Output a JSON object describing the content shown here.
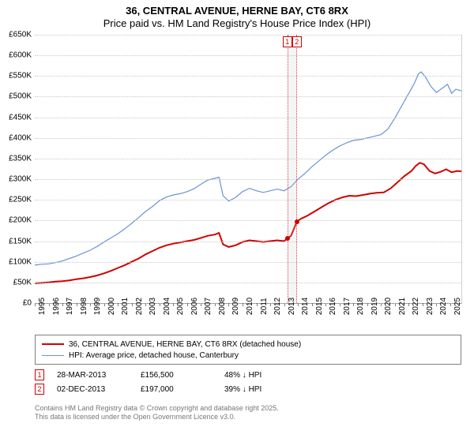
{
  "title": {
    "line1": "36, CENTRAL AVENUE, HERNE BAY, CT6 8RX",
    "line2": "Price paid vs. HM Land Registry's House Price Index (HPI)"
  },
  "chart": {
    "type": "line",
    "background_color": "#ffffff",
    "grid_color": "#c8c8c8",
    "axis_color": "#808080",
    "ylim": [
      0,
      650000
    ],
    "xlim": [
      1995,
      2025.8
    ],
    "yticks": [
      {
        "v": 0,
        "label": "£0"
      },
      {
        "v": 50000,
        "label": "£50K"
      },
      {
        "v": 100000,
        "label": "£100K"
      },
      {
        "v": 150000,
        "label": "£150K"
      },
      {
        "v": 200000,
        "label": "£200K"
      },
      {
        "v": 250000,
        "label": "£250K"
      },
      {
        "v": 300000,
        "label": "£300K"
      },
      {
        "v": 350000,
        "label": "£350K"
      },
      {
        "v": 400000,
        "label": "£400K"
      },
      {
        "v": 450000,
        "label": "£450K"
      },
      {
        "v": 500000,
        "label": "£500K"
      },
      {
        "v": 550000,
        "label": "£550K"
      },
      {
        "v": 600000,
        "label": "£600K"
      },
      {
        "v": 650000,
        "label": "£650K"
      }
    ],
    "xticks": [
      1995,
      1996,
      1997,
      1998,
      1999,
      2000,
      2001,
      2002,
      2003,
      2004,
      2005,
      2006,
      2007,
      2008,
      2009,
      2010,
      2011,
      2012,
      2013,
      2014,
      2015,
      2016,
      2017,
      2018,
      2019,
      2020,
      2021,
      2022,
      2023,
      2024,
      2025
    ],
    "series": [
      {
        "id": "price_paid",
        "label": "36, CENTRAL AVENUE, HERNE BAY, CT6 8RX (detached house)",
        "color": "#d00000",
        "line_width": 2,
        "data": [
          [
            1995,
            48000
          ],
          [
            1995.5,
            49000
          ],
          [
            1996,
            50000
          ],
          [
            1996.5,
            52000
          ],
          [
            1997,
            53000
          ],
          [
            1997.5,
            55000
          ],
          [
            1998,
            58000
          ],
          [
            1998.5,
            60000
          ],
          [
            1999,
            63000
          ],
          [
            1999.5,
            67000
          ],
          [
            2000,
            72000
          ],
          [
            2000.5,
            78000
          ],
          [
            2001,
            85000
          ],
          [
            2001.5,
            92000
          ],
          [
            2002,
            100000
          ],
          [
            2002.5,
            108000
          ],
          [
            2003,
            118000
          ],
          [
            2003.5,
            126000
          ],
          [
            2004,
            134000
          ],
          [
            2004.5,
            140000
          ],
          [
            2005,
            144000
          ],
          [
            2005.5,
            147000
          ],
          [
            2006,
            150000
          ],
          [
            2006.5,
            153000
          ],
          [
            2007,
            158000
          ],
          [
            2007.5,
            163000
          ],
          [
            2008,
            166000
          ],
          [
            2008.3,
            170000
          ],
          [
            2008.6,
            142000
          ],
          [
            2009,
            136000
          ],
          [
            2009.5,
            140000
          ],
          [
            2010,
            148000
          ],
          [
            2010.5,
            152000
          ],
          [
            2011,
            150000
          ],
          [
            2011.5,
            148000
          ],
          [
            2012,
            150000
          ],
          [
            2012.5,
            152000
          ],
          [
            2013,
            150000
          ],
          [
            2013.24,
            156500
          ],
          [
            2013.5,
            163000
          ],
          [
            2013.92,
            197000
          ],
          [
            2014.2,
            204000
          ],
          [
            2014.7,
            212000
          ],
          [
            2015.2,
            222000
          ],
          [
            2015.7,
            232000
          ],
          [
            2016.2,
            242000
          ],
          [
            2016.7,
            250000
          ],
          [
            2017.2,
            256000
          ],
          [
            2017.7,
            260000
          ],
          [
            2018.2,
            259000
          ],
          [
            2018.7,
            262000
          ],
          [
            2019.2,
            265000
          ],
          [
            2019.7,
            267000
          ],
          [
            2020.2,
            268000
          ],
          [
            2020.7,
            278000
          ],
          [
            2021.2,
            293000
          ],
          [
            2021.7,
            308000
          ],
          [
            2022.2,
            320000
          ],
          [
            2022.5,
            332000
          ],
          [
            2022.8,
            340000
          ],
          [
            2023.1,
            336000
          ],
          [
            2023.5,
            320000
          ],
          [
            2023.9,
            314000
          ],
          [
            2024.3,
            318000
          ],
          [
            2024.7,
            324000
          ],
          [
            2025.1,
            317000
          ],
          [
            2025.5,
            320000
          ],
          [
            2025.8,
            319000
          ]
        ]
      },
      {
        "id": "hpi",
        "label": "HPI: Average price, detached house, Canterbury",
        "color": "#6a93d4",
        "line_width": 1.2,
        "data": [
          [
            1995,
            92000
          ],
          [
            1995.5,
            94000
          ],
          [
            1996,
            95000
          ],
          [
            1996.5,
            98000
          ],
          [
            1997,
            102000
          ],
          [
            1997.5,
            108000
          ],
          [
            1998,
            114000
          ],
          [
            1998.5,
            121000
          ],
          [
            1999,
            128000
          ],
          [
            1999.5,
            137000
          ],
          [
            2000,
            148000
          ],
          [
            2000.5,
            158000
          ],
          [
            2001,
            168000
          ],
          [
            2001.5,
            180000
          ],
          [
            2002,
            193000
          ],
          [
            2002.5,
            207000
          ],
          [
            2003,
            222000
          ],
          [
            2003.5,
            234000
          ],
          [
            2004,
            248000
          ],
          [
            2004.5,
            257000
          ],
          [
            2005,
            262000
          ],
          [
            2005.5,
            265000
          ],
          [
            2006,
            270000
          ],
          [
            2006.5,
            277000
          ],
          [
            2007,
            288000
          ],
          [
            2007.5,
            298000
          ],
          [
            2008,
            302000
          ],
          [
            2008.3,
            305000
          ],
          [
            2008.6,
            260000
          ],
          [
            2009,
            247000
          ],
          [
            2009.5,
            256000
          ],
          [
            2010,
            270000
          ],
          [
            2010.5,
            278000
          ],
          [
            2011,
            272000
          ],
          [
            2011.5,
            268000
          ],
          [
            2012,
            272000
          ],
          [
            2012.5,
            276000
          ],
          [
            2013,
            272000
          ],
          [
            2013.5,
            282000
          ],
          [
            2014,
            300000
          ],
          [
            2014.5,
            314000
          ],
          [
            2015,
            330000
          ],
          [
            2015.5,
            344000
          ],
          [
            2016,
            358000
          ],
          [
            2016.5,
            370000
          ],
          [
            2017,
            380000
          ],
          [
            2017.5,
            388000
          ],
          [
            2018,
            394000
          ],
          [
            2018.5,
            396000
          ],
          [
            2019,
            400000
          ],
          [
            2019.5,
            404000
          ],
          [
            2020,
            408000
          ],
          [
            2020.5,
            422000
          ],
          [
            2021,
            448000
          ],
          [
            2021.5,
            478000
          ],
          [
            2022,
            508000
          ],
          [
            2022.4,
            532000
          ],
          [
            2022.7,
            555000
          ],
          [
            2022.9,
            560000
          ],
          [
            2023.2,
            548000
          ],
          [
            2023.6,
            525000
          ],
          [
            2024,
            510000
          ],
          [
            2024.4,
            520000
          ],
          [
            2024.8,
            530000
          ],
          [
            2025.1,
            508000
          ],
          [
            2025.4,
            518000
          ],
          [
            2025.8,
            514000
          ]
        ]
      }
    ],
    "sale_markers": [
      {
        "id": "1",
        "x": 2013.24,
        "y": 156500
      },
      {
        "id": "2",
        "x": 2013.92,
        "y": 197000
      }
    ]
  },
  "legend": {
    "rows": [
      {
        "color": "#d00000",
        "width": 2,
        "label": "36, CENTRAL AVENUE, HERNE BAY, CT6 8RX (detached house)"
      },
      {
        "color": "#6a93d4",
        "width": 1.2,
        "label": "HPI: Average price, detached house, Canterbury"
      }
    ]
  },
  "sales": {
    "rows": [
      {
        "n": "1",
        "date": "28-MAR-2013",
        "price": "£156,500",
        "delta": "48% ↓ HPI"
      },
      {
        "n": "2",
        "date": "02-DEC-2013",
        "price": "£197,000",
        "delta": "39% ↓ HPI"
      }
    ]
  },
  "footer": {
    "l1": "Contains HM Land Registry data © Crown copyright and database right 2025.",
    "l2": "This data is licensed under the Open Government Licence v3.0."
  }
}
